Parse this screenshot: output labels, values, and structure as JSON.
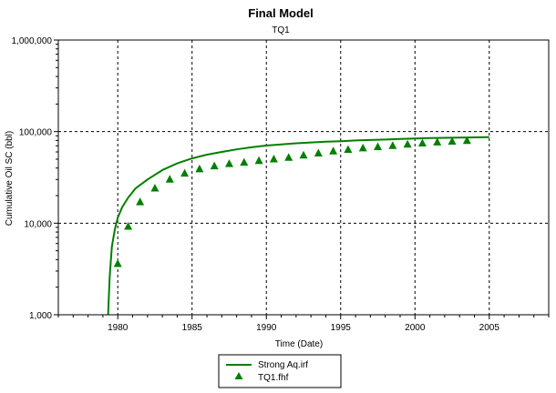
{
  "chart_data": {
    "type": "line",
    "title": "Final Model",
    "subtitle": "TQ1",
    "xlabel": "Time (Date)",
    "ylabel": "Cumulative Oil SC (bbl)",
    "xlim": [
      1976,
      2009
    ],
    "ylim": [
      1000,
      1000000
    ],
    "yscale": "log",
    "grid": true,
    "x_ticks": [
      1980,
      1985,
      1990,
      1995,
      2000,
      2005
    ],
    "y_ticks": [
      {
        "value": 1000,
        "label": "1,000"
      },
      {
        "value": 10000,
        "label": "10,000"
      },
      {
        "value": 100000,
        "label": "100,000"
      },
      {
        "value": 1000000,
        "label": "1,000,000"
      }
    ],
    "legend_position": "bottom-center",
    "colors": {
      "series": "#008000",
      "grid": "#000000",
      "axis": "#000000"
    },
    "series": [
      {
        "name": "Strong Aq.irf",
        "kind": "line",
        "points": [
          [
            1979.35,
            1000
          ],
          [
            1979.45,
            2500
          ],
          [
            1979.6,
            5500
          ],
          [
            1979.8,
            8500
          ],
          [
            1980.0,
            11500
          ],
          [
            1980.3,
            15000
          ],
          [
            1980.7,
            19000
          ],
          [
            1981.2,
            24000
          ],
          [
            1982.0,
            30000
          ],
          [
            1983.0,
            38000
          ],
          [
            1984.0,
            45000
          ],
          [
            1985.0,
            51000
          ],
          [
            1986.0,
            56000
          ],
          [
            1987.0,
            60000
          ],
          [
            1988.0,
            64000
          ],
          [
            1989.0,
            67500
          ],
          [
            1990.0,
            70500
          ],
          [
            1991.0,
            72500
          ],
          [
            1992.0,
            74500
          ],
          [
            1993.0,
            76000
          ],
          [
            1994.0,
            77500
          ],
          [
            1995.0,
            78500
          ],
          [
            1996.0,
            80000
          ],
          [
            1997.0,
            81000
          ],
          [
            1998.0,
            82000
          ],
          [
            1999.0,
            83000
          ],
          [
            2000.0,
            84000
          ],
          [
            2001.0,
            85000
          ],
          [
            2002.0,
            85500
          ],
          [
            2003.0,
            86000
          ],
          [
            2004.0,
            86500
          ],
          [
            2005.0,
            87000
          ]
        ]
      },
      {
        "name": "TQ1.fhf",
        "kind": "scatter",
        "marker": "triangle",
        "points": [
          [
            1980.0,
            3600
          ],
          [
            1980.7,
            9200
          ],
          [
            1981.5,
            17000
          ],
          [
            1982.5,
            24000
          ],
          [
            1983.5,
            30000
          ],
          [
            1984.5,
            35000
          ],
          [
            1985.5,
            39000
          ],
          [
            1986.5,
            42000
          ],
          [
            1987.5,
            44500
          ],
          [
            1988.5,
            46000
          ],
          [
            1989.5,
            48000
          ],
          [
            1990.5,
            50000
          ],
          [
            1991.5,
            52000
          ],
          [
            1992.5,
            55000
          ],
          [
            1993.5,
            58000
          ],
          [
            1994.5,
            61000
          ],
          [
            1995.5,
            63500
          ],
          [
            1996.5,
            66000
          ],
          [
            1997.5,
            68000
          ],
          [
            1998.5,
            70000
          ],
          [
            1999.5,
            72500
          ],
          [
            2000.5,
            74500
          ],
          [
            2001.5,
            76500
          ],
          [
            2002.5,
            78000
          ],
          [
            2003.5,
            79500
          ]
        ]
      }
    ]
  }
}
